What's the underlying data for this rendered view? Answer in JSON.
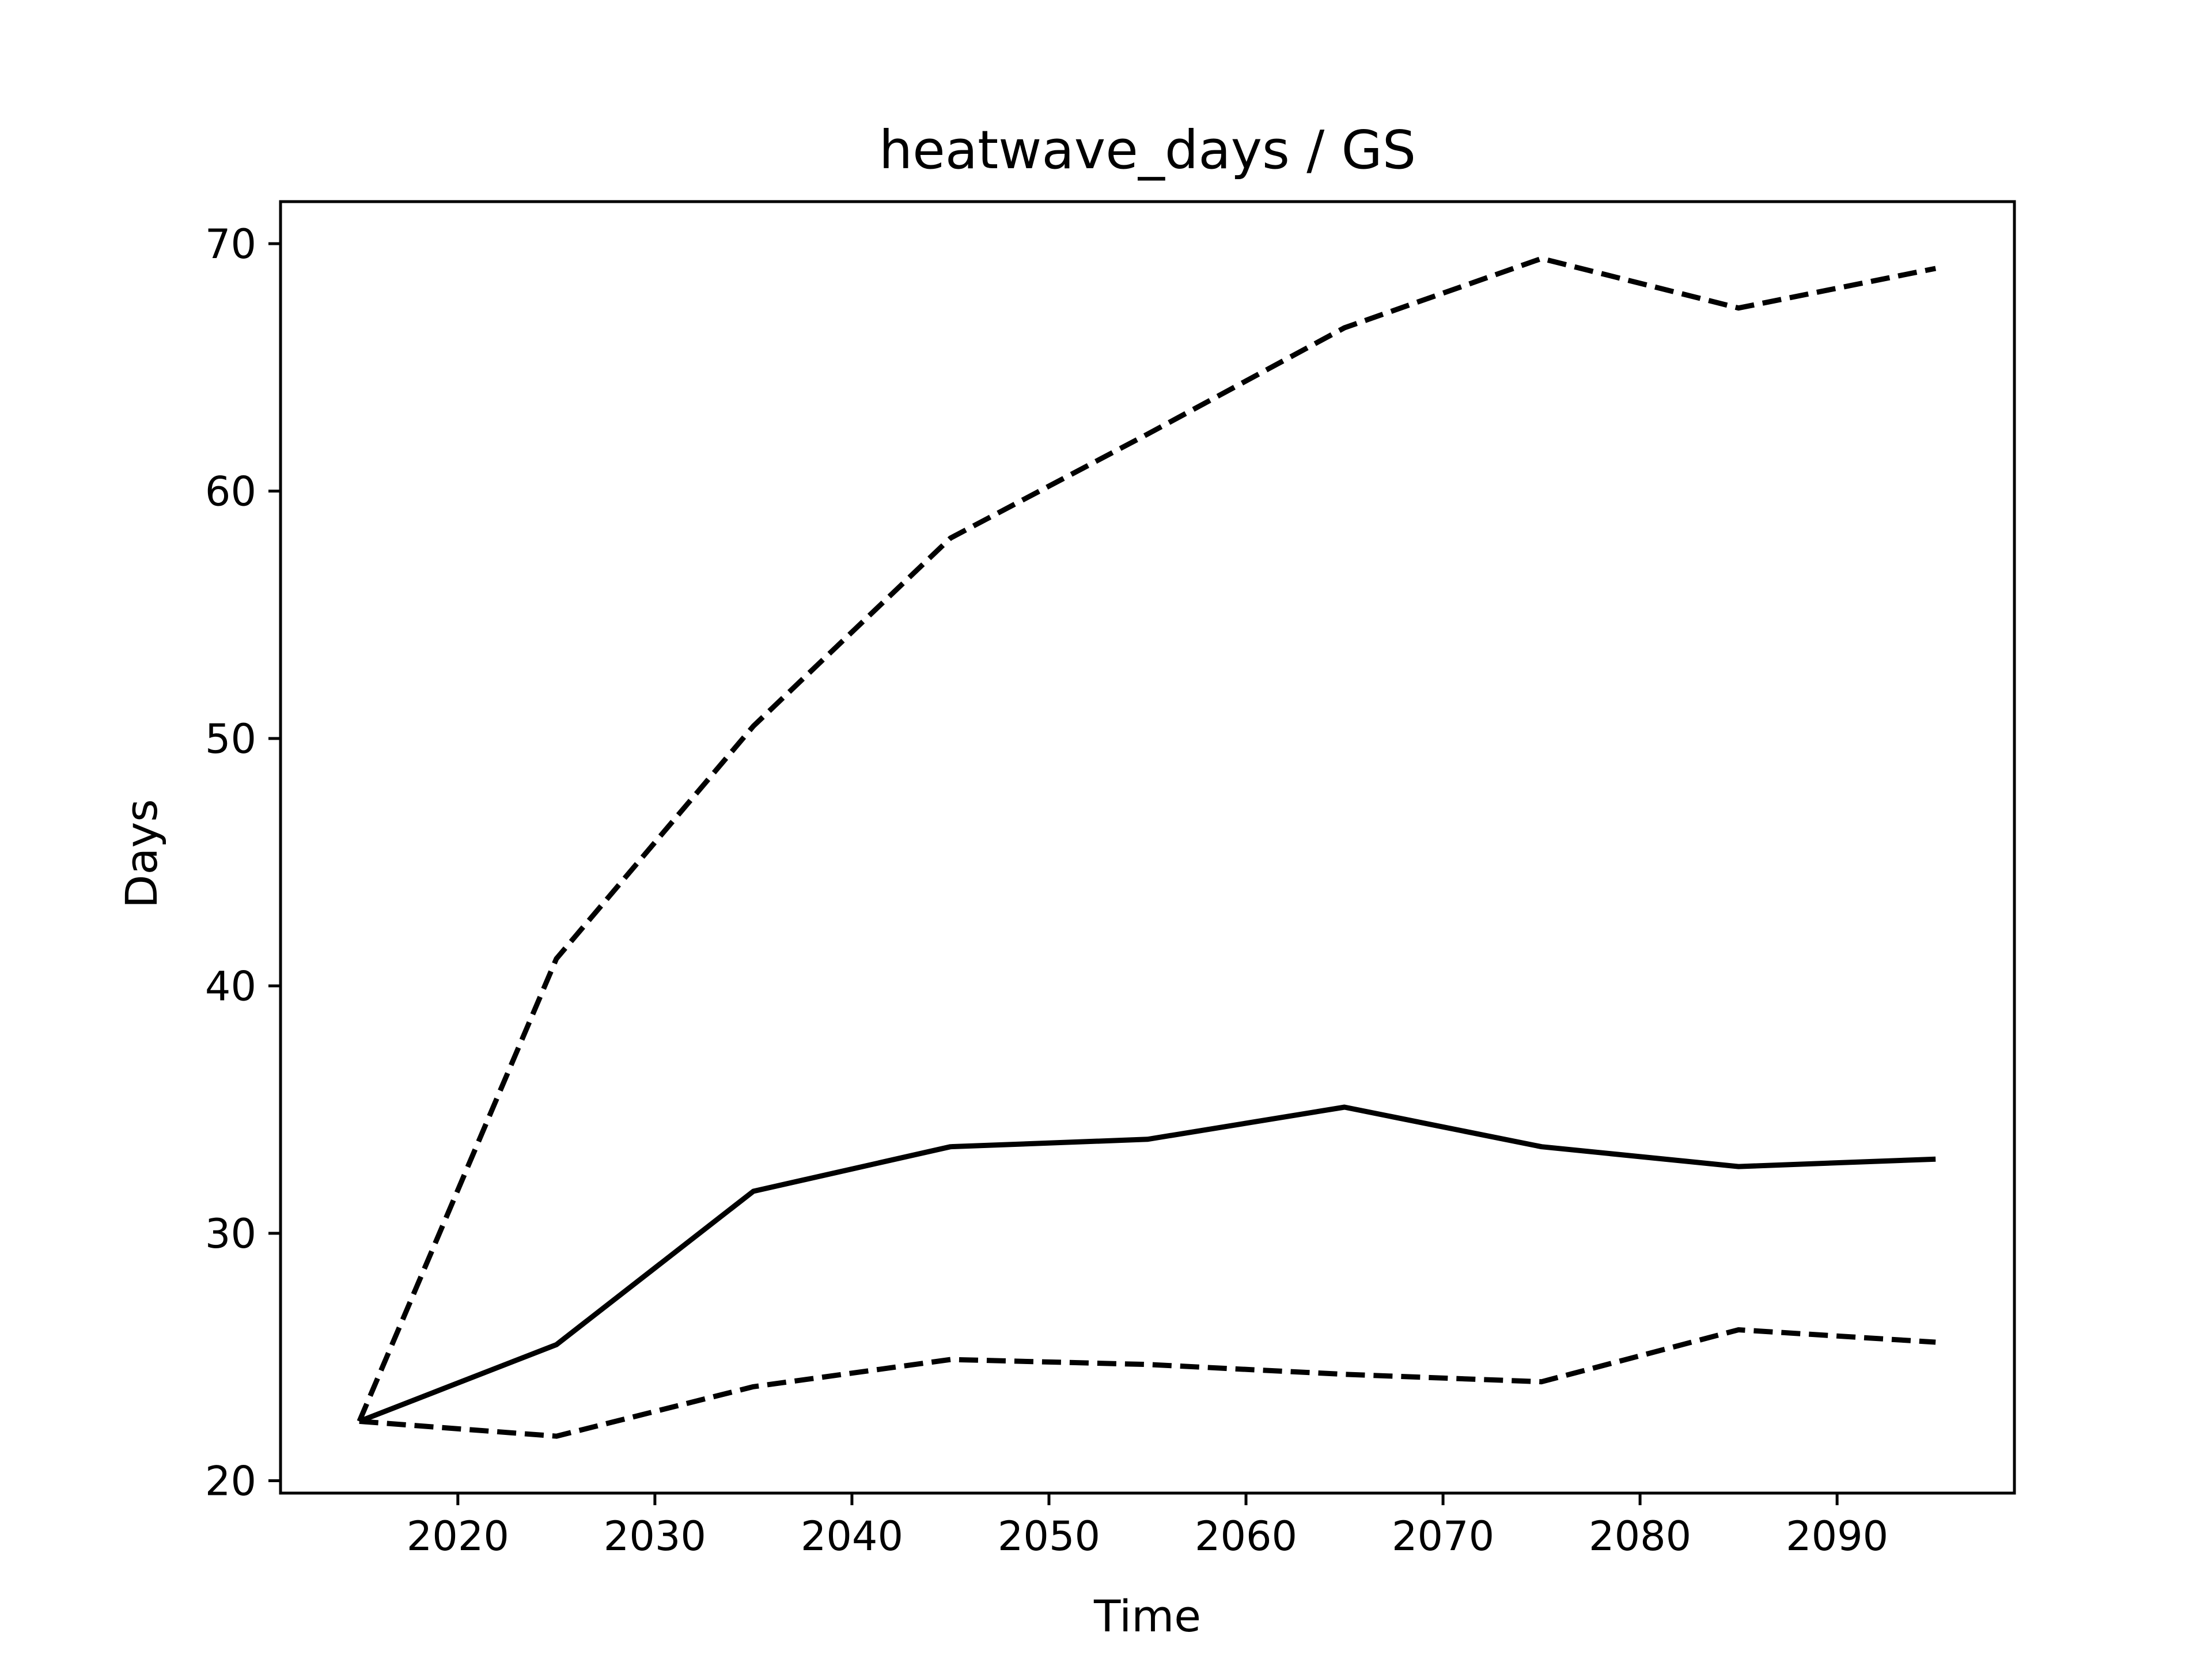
{
  "chart_data": {
    "type": "line",
    "title": "heatwave_days / GS",
    "xlabel": "Time",
    "ylabel": "Days",
    "xlim": [
      2011,
      2099
    ],
    "ylim": [
      19.5,
      71.7
    ],
    "x_ticks": [
      2020,
      2030,
      2040,
      2050,
      2060,
      2070,
      2080,
      2090
    ],
    "y_ticks": [
      20,
      30,
      40,
      50,
      60,
      70
    ],
    "grid": false,
    "legend": "none",
    "x": [
      2015,
      2025,
      2035,
      2045,
      2055,
      2065,
      2075,
      2085,
      2095
    ],
    "series": [
      {
        "style": "solid",
        "color": "#000000",
        "values": [
          22.4,
          25.5,
          31.7,
          33.5,
          33.8,
          35.1,
          33.5,
          32.7,
          33.0
        ]
      },
      {
        "style": "dashed",
        "color": "#000000",
        "values": [
          22.4,
          41.1,
          50.5,
          58.1,
          62.3,
          66.6,
          69.4,
          67.4,
          69.0
        ]
      },
      {
        "style": "dashed",
        "color": "#000000",
        "values": [
          22.4,
          21.8,
          23.8,
          24.9,
          24.7,
          24.3,
          24.0,
          26.1,
          25.6
        ]
      }
    ]
  }
}
